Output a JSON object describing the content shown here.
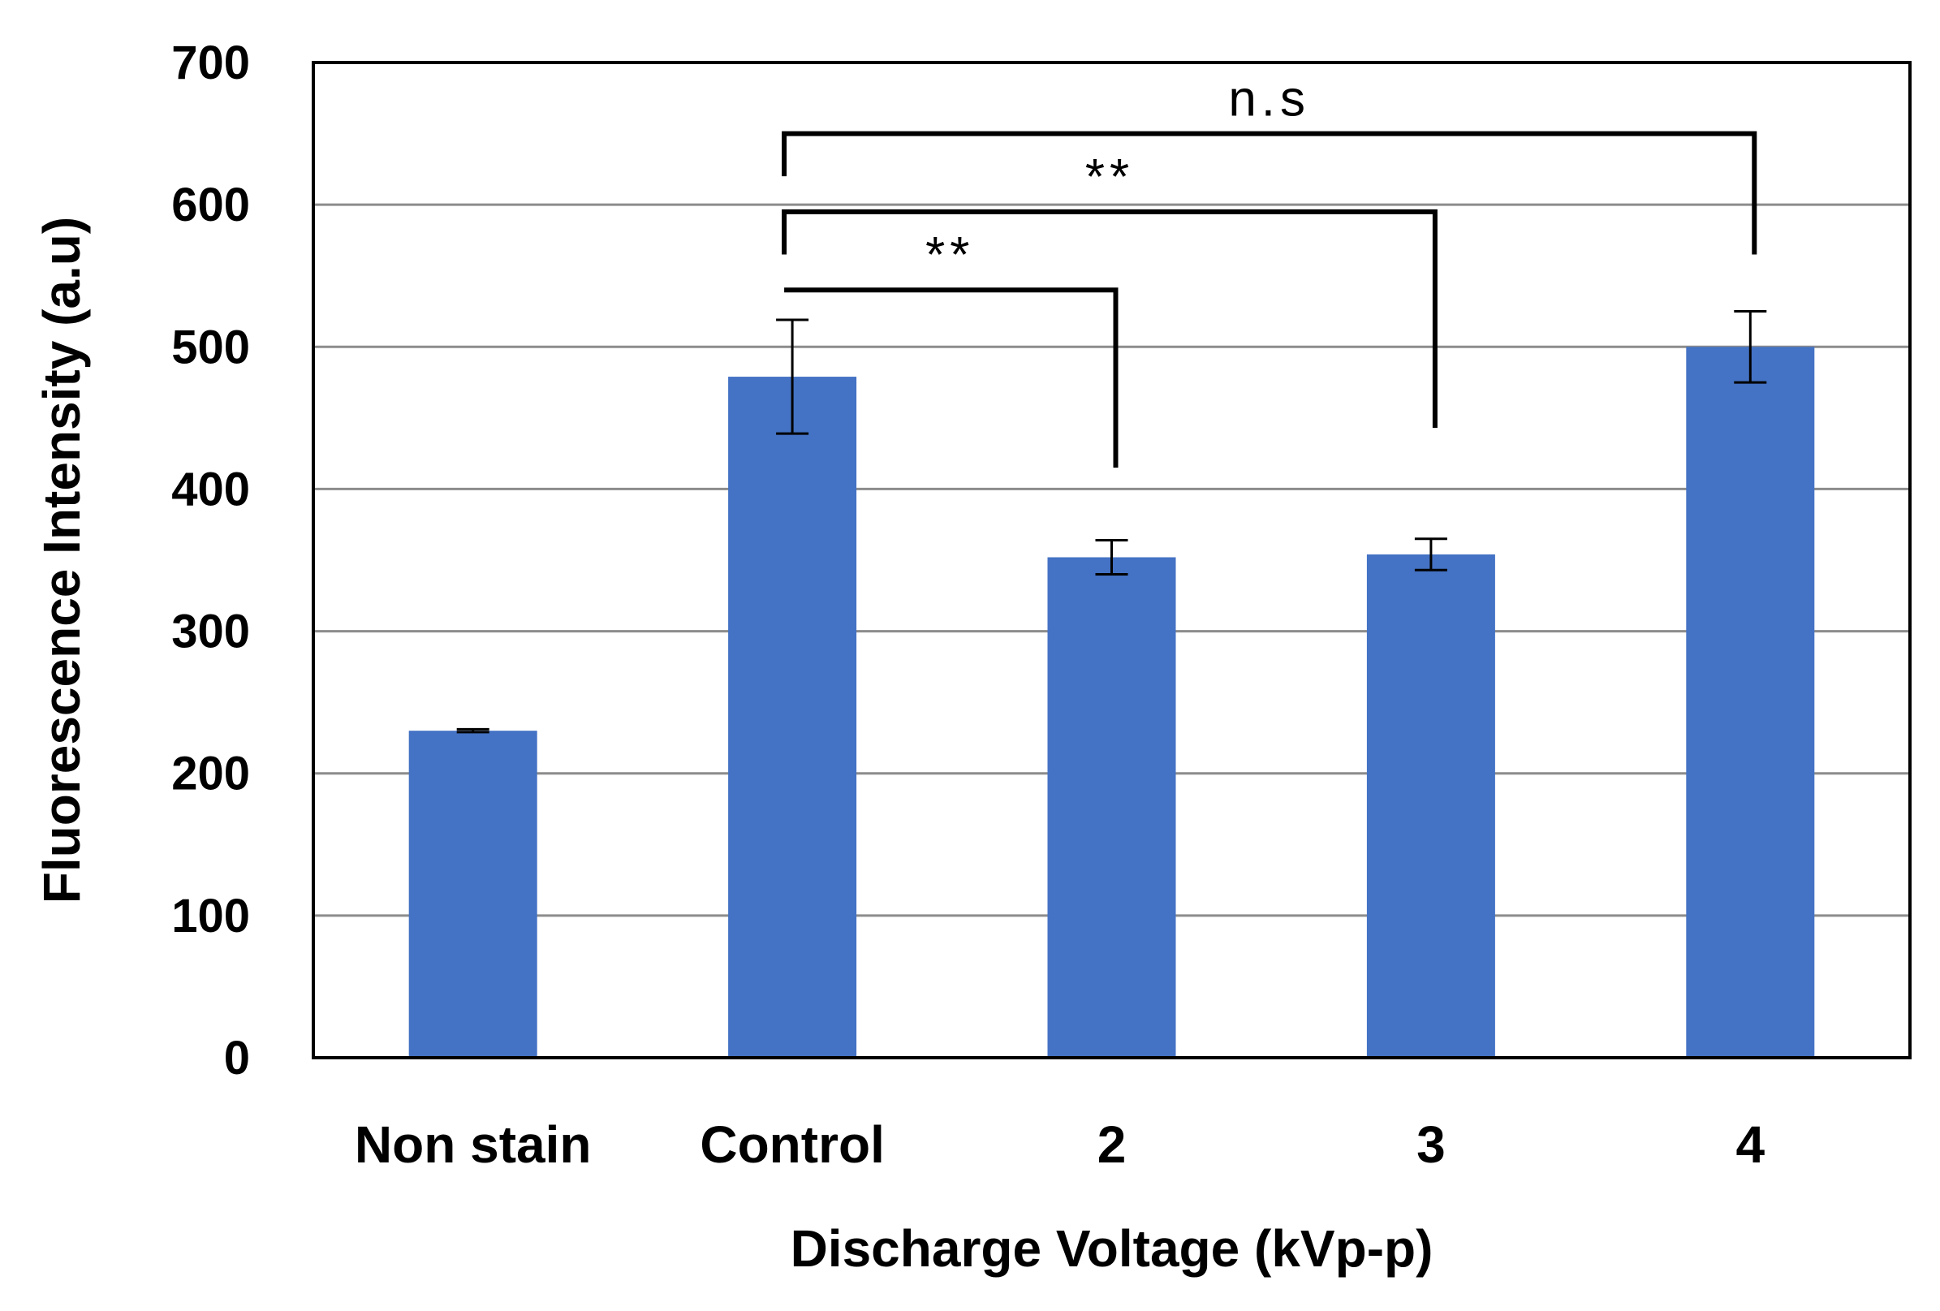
{
  "chart_data": {
    "type": "bar",
    "title": "",
    "xlabel": "Discharge Voltage (kVp-p)",
    "ylabel": "Fluorescence Intensity (a.u)",
    "ylim": [
      0,
      700
    ],
    "yticks": [
      0,
      100,
      200,
      300,
      400,
      500,
      600,
      700
    ],
    "ytick_labels": [
      "0",
      "100",
      "200",
      "300",
      "400",
      "500",
      "600",
      "700"
    ],
    "grid": true,
    "categories": [
      "Non stain",
      "Control",
      "2",
      "3",
      "4"
    ],
    "values": [
      230,
      479,
      352,
      354,
      500
    ],
    "error_bars": [
      1,
      40,
      12,
      11,
      25
    ],
    "bar_color": "#4472C4",
    "significance": [
      {
        "from": "Control",
        "to": "2",
        "label": "**",
        "bracket_y": 540,
        "left_drop_to": 540,
        "right_drop_to": 415
      },
      {
        "from": "Control",
        "to": "3",
        "label": "**",
        "bracket_y": 595,
        "left_drop_to": 565,
        "right_drop_to": 443
      },
      {
        "from": "Control",
        "to": "4",
        "label": "n.s",
        "bracket_y": 650,
        "left_drop_to": 620,
        "right_drop_to": 565
      }
    ]
  }
}
